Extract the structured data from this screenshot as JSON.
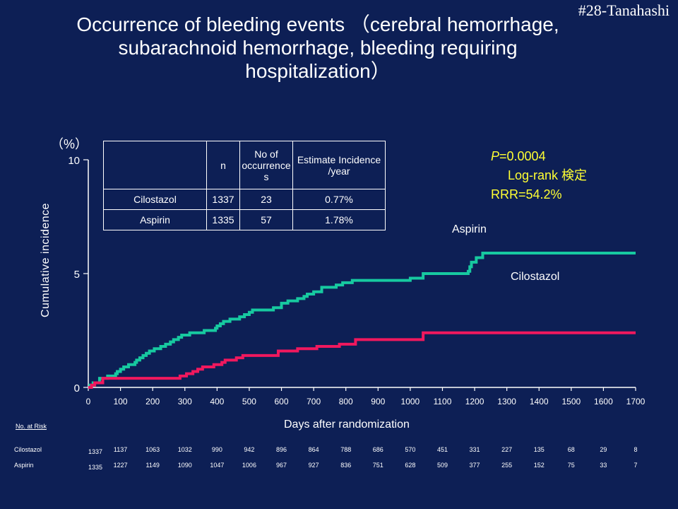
{
  "slide_id": "#28-Tanahashi",
  "title_lines": [
    "Occurrence of bleeding events （cerebral hemorrhage,",
    "subarachnoid hemorrhage, bleeding requiring",
    "hospitalization）"
  ],
  "stats": {
    "p_label": "P",
    "p_value": "=0.0004",
    "test": "Log-rank 検定",
    "rrr": "RRR=54.2%"
  },
  "curve_labels": {
    "aspirin": "Aspirin",
    "cilostazol": "Cilostazol"
  },
  "colors": {
    "background": "#0d1f55",
    "aspirin": "#17c9a0",
    "cilostazol": "#f0185e",
    "stats": "#ffff33"
  },
  "summary_table": {
    "headers": [
      "",
      "n",
      "No of occurrence s",
      "Estimate Incidence /year"
    ],
    "rows": [
      [
        "Cilostazol",
        "1337",
        "23",
        "0.77%"
      ],
      [
        "Aspirin",
        "1335",
        "57",
        "1.78%"
      ]
    ]
  },
  "risk_table": {
    "heading": "No. at Risk",
    "rows": [
      {
        "name": "Cilostazol",
        "values": [
          "1337",
          "1137",
          "1063",
          "1032",
          "990",
          "942",
          "896",
          "864",
          "788",
          "686",
          "570",
          "451",
          "331",
          "227",
          "135",
          "68",
          "29",
          "8"
        ]
      },
      {
        "name": "Aspirin",
        "values": [
          "1335",
          "1227",
          "1149",
          "1090",
          "1047",
          "1006",
          "967",
          "927",
          "836",
          "751",
          "628",
          "509",
          "377",
          "255",
          "152",
          "75",
          "33",
          "7"
        ]
      }
    ]
  },
  "chart_data": {
    "type": "line",
    "title": "Occurrence of bleeding events （cerebral hemorrhage, subarachnoid hemorrhage, bleeding requiring hospitalization）",
    "xlabel": "Days after randomization",
    "ylabel": "Cumulative incidence",
    "yunit": "（%）",
    "xlim": [
      0,
      1700
    ],
    "ylim": [
      0,
      10
    ],
    "xticks": [
      0,
      100,
      200,
      300,
      400,
      500,
      600,
      700,
      800,
      900,
      1000,
      1100,
      1200,
      1300,
      1400,
      1500,
      1600,
      1700
    ],
    "yticks": [
      0,
      5,
      10
    ],
    "grid": false,
    "series": [
      {
        "name": "Aspirin",
        "step": true,
        "points": [
          [
            0,
            0
          ],
          [
            5,
            0.1
          ],
          [
            15,
            0.2
          ],
          [
            35,
            0.4
          ],
          [
            60,
            0.5
          ],
          [
            85,
            0.6
          ],
          [
            90,
            0.7
          ],
          [
            100,
            0.8
          ],
          [
            110,
            0.9
          ],
          [
            125,
            1.0
          ],
          [
            145,
            1.1
          ],
          [
            150,
            1.2
          ],
          [
            160,
            1.3
          ],
          [
            170,
            1.4
          ],
          [
            180,
            1.5
          ],
          [
            190,
            1.6
          ],
          [
            205,
            1.7
          ],
          [
            225,
            1.8
          ],
          [
            240,
            1.9
          ],
          [
            255,
            2.0
          ],
          [
            265,
            2.1
          ],
          [
            280,
            2.2
          ],
          [
            290,
            2.3
          ],
          [
            315,
            2.4
          ],
          [
            360,
            2.5
          ],
          [
            395,
            2.6
          ],
          [
            400,
            2.7
          ],
          [
            410,
            2.8
          ],
          [
            420,
            2.9
          ],
          [
            440,
            3.0
          ],
          [
            470,
            3.1
          ],
          [
            485,
            3.2
          ],
          [
            500,
            3.3
          ],
          [
            510,
            3.4
          ],
          [
            575,
            3.5
          ],
          [
            600,
            3.7
          ],
          [
            620,
            3.8
          ],
          [
            650,
            3.9
          ],
          [
            670,
            4.0
          ],
          [
            680,
            4.1
          ],
          [
            700,
            4.2
          ],
          [
            725,
            4.4
          ],
          [
            770,
            4.5
          ],
          [
            790,
            4.6
          ],
          [
            820,
            4.7
          ],
          [
            1000,
            4.8
          ],
          [
            1040,
            5.0
          ],
          [
            1180,
            5.1
          ],
          [
            1185,
            5.3
          ],
          [
            1190,
            5.5
          ],
          [
            1205,
            5.7
          ],
          [
            1225,
            5.9
          ],
          [
            1700,
            5.9
          ]
        ]
      },
      {
        "name": "Cilostazol",
        "step": true,
        "points": [
          [
            0,
            0
          ],
          [
            10,
            0.1
          ],
          [
            20,
            0.2
          ],
          [
            45,
            0.4
          ],
          [
            285,
            0.5
          ],
          [
            305,
            0.6
          ],
          [
            325,
            0.7
          ],
          [
            340,
            0.8
          ],
          [
            355,
            0.9
          ],
          [
            390,
            1.0
          ],
          [
            415,
            1.1
          ],
          [
            425,
            1.2
          ],
          [
            460,
            1.3
          ],
          [
            480,
            1.4
          ],
          [
            590,
            1.6
          ],
          [
            650,
            1.7
          ],
          [
            710,
            1.8
          ],
          [
            780,
            1.9
          ],
          [
            830,
            2.1
          ],
          [
            1040,
            2.4
          ],
          [
            1700,
            2.4
          ]
        ]
      }
    ]
  }
}
